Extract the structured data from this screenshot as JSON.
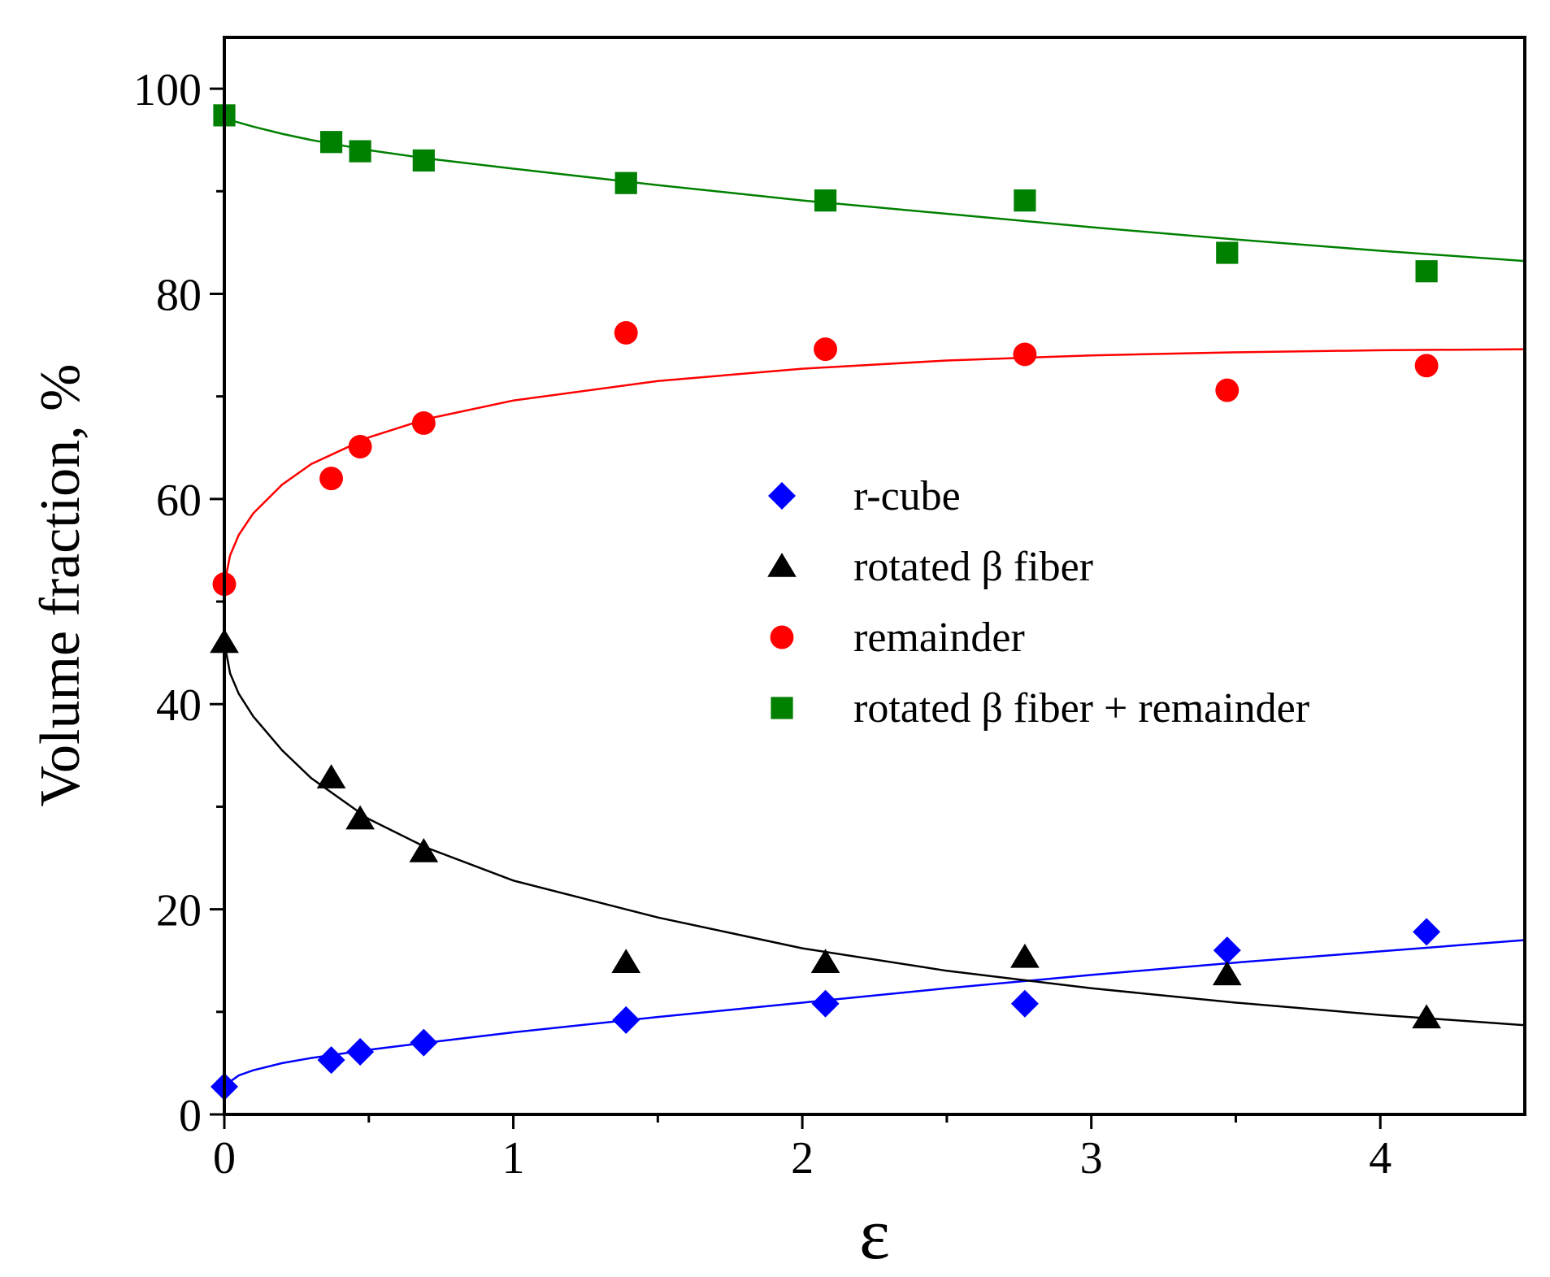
{
  "chart_data": {
    "type": "scatter",
    "title": "",
    "xlabel": "ε",
    "ylabel": "Volume fraction, %",
    "xlim": [
      0,
      4.5
    ],
    "ylim": [
      0,
      105
    ],
    "xticks": [
      0,
      1,
      2,
      3,
      4
    ],
    "yticks": [
      0,
      20,
      40,
      60,
      80,
      100
    ],
    "x_minor_ticks": [
      0.5,
      1.5,
      2.5,
      3.5
    ],
    "y_minor_ticks": [
      10,
      30,
      50,
      70,
      90
    ],
    "legend_position": "center-right",
    "series": [
      {
        "name": "r-cube",
        "color": "#0000ff",
        "marker": "diamond",
        "x": [
          0,
          0.37,
          0.47,
          0.69,
          1.39,
          2.08,
          2.77,
          3.47,
          4.16
        ],
        "y": [
          2.7,
          5.3,
          6.1,
          7.0,
          9.2,
          10.8,
          10.8,
          16.0,
          17.8
        ],
        "fit_x": [
          0,
          0.05,
          0.1,
          0.2,
          0.3,
          0.5,
          0.7,
          1.0,
          1.5,
          2.0,
          2.5,
          3.0,
          3.5,
          4.0,
          4.5
        ],
        "fit_y": [
          2.8,
          3.8,
          4.3,
          5.0,
          5.5,
          6.3,
          7.0,
          8.0,
          9.5,
          10.9,
          12.3,
          13.6,
          14.8,
          15.9,
          17.0
        ]
      },
      {
        "name": "rotated β fiber",
        "color": "#000000",
        "marker": "triangle",
        "x": [
          0,
          0.37,
          0.47,
          0.69,
          1.39,
          2.08,
          2.77,
          3.47,
          4.16
        ],
        "y": [
          46.0,
          32.8,
          28.8,
          25.6,
          14.8,
          14.8,
          15.3,
          13.6,
          9.4
        ],
        "fit_x": [
          0,
          0.02,
          0.05,
          0.1,
          0.2,
          0.3,
          0.5,
          0.7,
          1.0,
          1.5,
          2.0,
          2.5,
          3.0,
          3.5,
          4.0,
          4.5
        ],
        "fit_y": [
          46.0,
          43.0,
          41.0,
          38.8,
          35.5,
          32.8,
          28.8,
          26.0,
          22.8,
          19.2,
          16.2,
          14.0,
          12.3,
          10.9,
          9.7,
          8.7
        ]
      },
      {
        "name": "remainder",
        "color": "#ff0000",
        "marker": "circle",
        "x": [
          0,
          0.37,
          0.47,
          0.69,
          1.39,
          2.08,
          2.77,
          3.47,
          4.16
        ],
        "y": [
          51.7,
          62.0,
          65.1,
          67.4,
          76.2,
          74.6,
          74.1,
          70.6,
          73.0
        ],
        "fit_x": [
          0,
          0.02,
          0.05,
          0.1,
          0.2,
          0.3,
          0.5,
          0.7,
          1.0,
          1.5,
          2.0,
          2.5,
          3.0,
          3.5,
          4.0,
          4.5
        ],
        "fit_y": [
          51.7,
          54.5,
          56.5,
          58.6,
          61.4,
          63.4,
          66.0,
          67.8,
          69.6,
          71.5,
          72.7,
          73.5,
          74.0,
          74.3,
          74.5,
          74.6
        ]
      },
      {
        "name": "rotated β fiber + remainder",
        "color": "#008000",
        "marker": "square",
        "x": [
          0,
          0.37,
          0.47,
          0.69,
          1.39,
          2.08,
          2.77,
          3.47,
          4.16
        ],
        "y": [
          97.4,
          94.8,
          93.9,
          93.0,
          90.8,
          89.1,
          89.1,
          84.0,
          82.2
        ],
        "fit_x": [
          0,
          0.1,
          0.2,
          0.3,
          0.5,
          0.7,
          1.0,
          1.5,
          2.0,
          2.5,
          3.0,
          3.5,
          4.0,
          4.5
        ],
        "fit_y": [
          97.1,
          96.3,
          95.6,
          95.0,
          94.0,
          93.2,
          92.2,
          90.6,
          89.1,
          87.8,
          86.5,
          85.3,
          84.2,
          83.2
        ]
      }
    ]
  }
}
